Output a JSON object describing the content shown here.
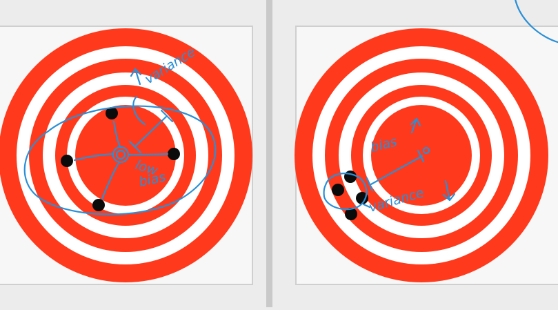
{
  "colors": {
    "page_background": "#ececec",
    "panel_background": "#f7f7f7",
    "panel_border": "#cfcfcf",
    "divider": "#c9c9c9",
    "target_red": "#ff3a1c",
    "ring_white": "#ffffff",
    "dot": "#0b0b0b",
    "annotation_ink": "#2a8fd6"
  },
  "left_panel": {
    "annotations": {
      "variance_label": "variance",
      "bias_label_line1": "low",
      "bias_label_line2": "bias"
    }
  },
  "right_panel": {
    "annotations": {
      "bias_label": "bias",
      "variance_label": "variance"
    }
  }
}
